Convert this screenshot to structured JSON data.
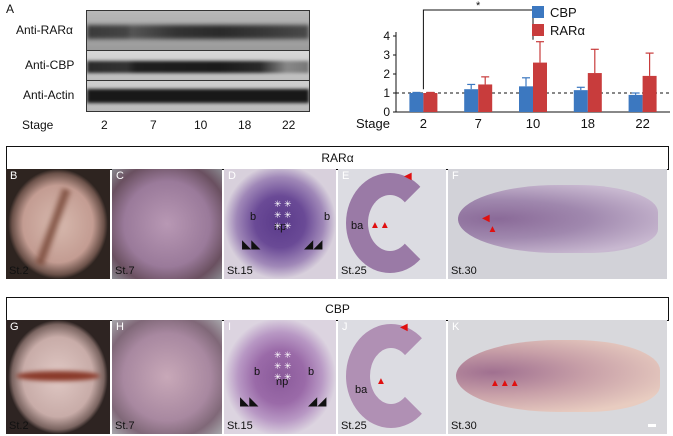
{
  "panel_a": {
    "letter": "A",
    "blot_labels": [
      "Anti-RARα",
      "Anti-CBP",
      "Anti-Actin"
    ],
    "stage_label": "Stage",
    "stages": [
      "2",
      "7",
      "10",
      "18",
      "22"
    ]
  },
  "chart_data": {
    "type": "bar",
    "categories": [
      "2",
      "7",
      "10",
      "18",
      "22"
    ],
    "xlabel": "Stage",
    "ylim": [
      0,
      4
    ],
    "yticks": [
      "0",
      "1",
      "2",
      "3",
      "4"
    ],
    "series": [
      {
        "name": "CBP",
        "color": "#3c78c0",
        "values": [
          1.0,
          1.2,
          1.35,
          1.15,
          0.9
        ],
        "errors": [
          0.03,
          0.25,
          0.45,
          0.15,
          0.1
        ]
      },
      {
        "name": "RARα",
        "color": "#c83c3c",
        "values": [
          1.0,
          1.45,
          2.6,
          2.05,
          1.9
        ],
        "errors": [
          0.03,
          0.4,
          1.1,
          1.25,
          1.2
        ]
      }
    ],
    "reference_line": 1,
    "significance": {
      "label": "*",
      "from": "2",
      "to": "10"
    },
    "legend": "top-right"
  },
  "rar_section": {
    "title": "RARα",
    "panels": [
      {
        "letter": "B",
        "stage": "St.2"
      },
      {
        "letter": "C",
        "stage": "St.7"
      },
      {
        "letter": "D",
        "stage": "St.15",
        "labels": [
          "b",
          "np",
          "b"
        ]
      },
      {
        "letter": "E",
        "stage": "St.25",
        "labels": [
          "ba"
        ]
      },
      {
        "letter": "F",
        "stage": "St.30"
      }
    ]
  },
  "cbp_section": {
    "title": "CBP",
    "panels": [
      {
        "letter": "G",
        "stage": "St.2"
      },
      {
        "letter": "H",
        "stage": "St.7"
      },
      {
        "letter": "I",
        "stage": "St.15",
        "labels": [
          "b",
          "np",
          "b"
        ]
      },
      {
        "letter": "J",
        "stage": "St.25",
        "labels": [
          "ba"
        ]
      },
      {
        "letter": "K",
        "stage": "St.30"
      }
    ]
  }
}
